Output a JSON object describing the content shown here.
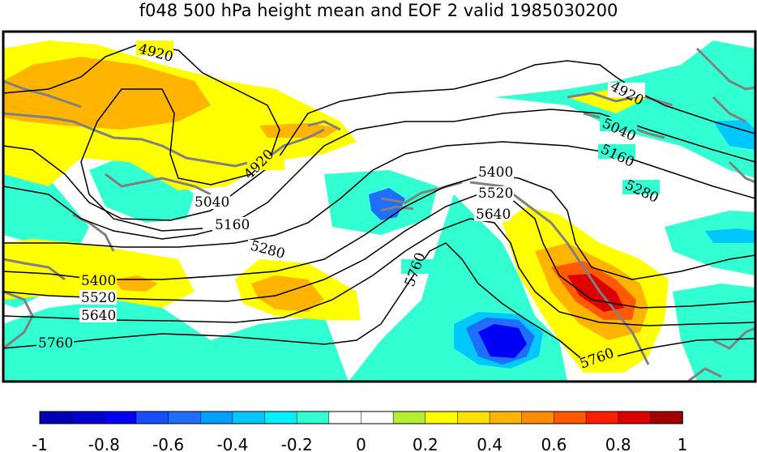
{
  "title": "f048 500 hPa height mean and EOF 2 valid 1985030200",
  "colorbar": {
    "colors": [
      "#0000b4",
      "#0000d2",
      "#0000f5",
      "#1450ff",
      "#1e6eff",
      "#00a0ff",
      "#00c8ff",
      "#00f0ff",
      "#32ffd2",
      "#ffffff",
      "#ffffff",
      "#b4f032",
      "#ffff00",
      "#ffe100",
      "#ffb400",
      "#ff8c00",
      "#ff5a00",
      "#ff1e00",
      "#dc0000",
      "#a00000"
    ],
    "tick_labels": [
      "-1",
      "-0.8",
      "-0.6",
      "-0.4",
      "-0.2",
      "0",
      "0.2",
      "0.4",
      "0.6",
      "0.8",
      "1"
    ]
  },
  "contours": {
    "labels": [
      "4920",
      "4920",
      "4920",
      "5040",
      "5040",
      "5160",
      "5160",
      "5280",
      "5280",
      "5400",
      "5400",
      "5520",
      "5520",
      "5640",
      "5640",
      "5760",
      "5760",
      "5760"
    ]
  }
}
